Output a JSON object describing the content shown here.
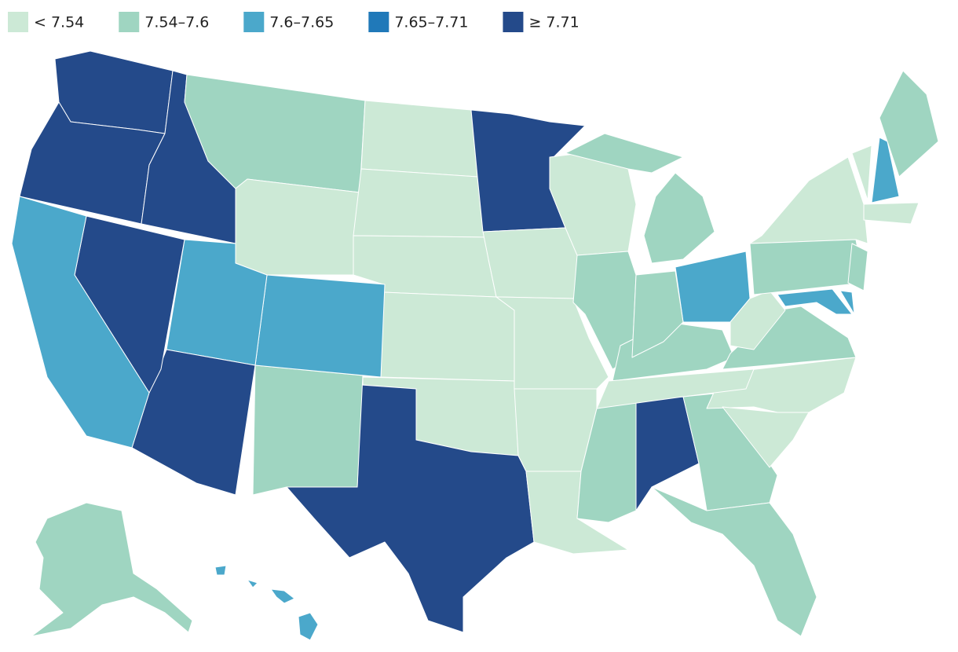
{
  "legend": [
    {
      "label": "< 7.54",
      "color": "#cce9d6"
    },
    {
      "label": "7.54–7.6",
      "color": "#9fd5c1"
    },
    {
      "label": "7.6–7.65",
      "color": "#4ba8cb"
    },
    {
      "label": "7.65–7.71",
      "color": "#2079b9"
    },
    {
      "label": "≥ 7.71",
      "color": "#244a8a"
    }
  ],
  "regions": [
    4,
    4,
    4,
    1,
    0,
    0,
    0,
    0,
    0,
    0,
    4,
    1,
    2,
    2,
    4,
    4,
    2,
    4,
    0,
    0,
    0,
    1,
    0,
    0,
    1,
    4,
    1,
    0,
    1,
    1,
    2,
    1,
    1,
    0,
    0,
    1,
    0,
    0,
    2,
    1,
    2,
    1,
    0,
    0,
    2,
    1,
    1,
    2
  ]
}
